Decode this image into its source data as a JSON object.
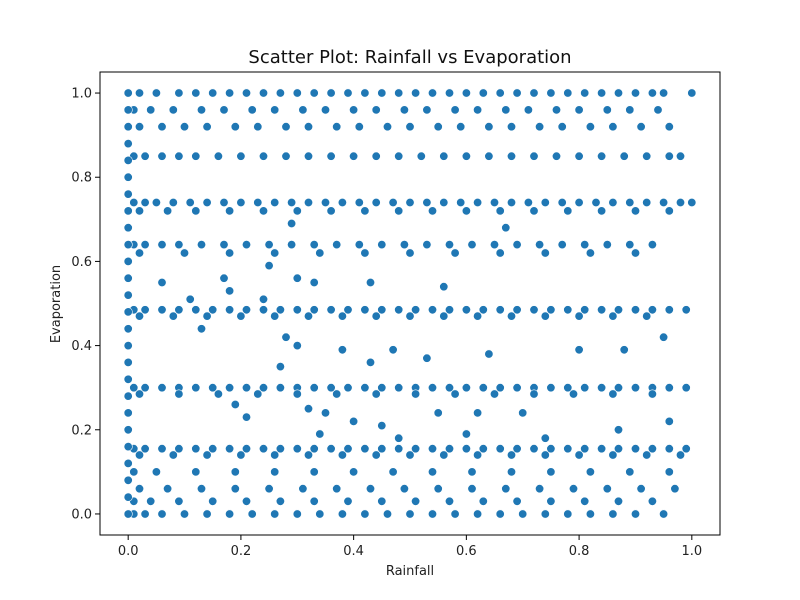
{
  "chart_data": {
    "type": "scatter",
    "title": "Scatter Plot: Rainfall vs Evaporation",
    "xlabel": "Rainfall",
    "ylabel": "Evaporation",
    "xlim": [
      -0.05,
      1.05
    ],
    "ylim": [
      -0.05,
      1.05
    ],
    "x_ticks": [
      0.0,
      0.2,
      0.4,
      0.6,
      0.8,
      1.0
    ],
    "y_ticks": [
      0.0,
      0.2,
      0.4,
      0.6,
      0.8,
      1.0
    ],
    "x_tick_labels": [
      "0.0",
      "0.2",
      "0.4",
      "0.6",
      "0.8",
      "1.0"
    ],
    "y_tick_labels": [
      "0.0",
      "0.2",
      "0.4",
      "0.6",
      "0.8",
      "1.0"
    ],
    "grid": false,
    "colors": {
      "marker": "#1f77b4",
      "marker_edge": "#ffffff"
    },
    "bands": [
      {
        "y": 1.0,
        "x": [
          0.02,
          0.05,
          0.09,
          0.12,
          0.15,
          0.18,
          0.21,
          0.24,
          0.27,
          0.3,
          0.33,
          0.36,
          0.39,
          0.42,
          0.45,
          0.48,
          0.51,
          0.54,
          0.57,
          0.6,
          0.63,
          0.66,
          0.69,
          0.72,
          0.75,
          0.78,
          0.81,
          0.84,
          0.87,
          0.9,
          0.93,
          0.95,
          1.0
        ]
      },
      {
        "y": 0.96,
        "x": [
          0.01,
          0.04,
          0.08,
          0.13,
          0.17,
          0.22,
          0.26,
          0.31,
          0.35,
          0.4,
          0.44,
          0.49,
          0.53,
          0.58,
          0.62,
          0.67,
          0.71,
          0.76,
          0.8,
          0.85,
          0.89,
          0.94
        ]
      },
      {
        "y": 0.92,
        "x": [
          0.02,
          0.06,
          0.1,
          0.14,
          0.19,
          0.23,
          0.28,
          0.32,
          0.37,
          0.41,
          0.46,
          0.5,
          0.55,
          0.59,
          0.64,
          0.68,
          0.73,
          0.77,
          0.82,
          0.86,
          0.91,
          0.96
        ]
      },
      {
        "y": 0.85,
        "x": [
          0.01,
          0.03,
          0.06,
          0.09,
          0.12,
          0.16,
          0.2,
          0.24,
          0.28,
          0.32,
          0.36,
          0.4,
          0.44,
          0.48,
          0.52,
          0.56,
          0.6,
          0.64,
          0.68,
          0.72,
          0.76,
          0.8,
          0.84,
          0.88,
          0.92,
          0.96,
          0.98
        ]
      },
      {
        "y": 0.74,
        "x": [
          0.01,
          0.03,
          0.05,
          0.08,
          0.11,
          0.14,
          0.17,
          0.2,
          0.23,
          0.26,
          0.29,
          0.32,
          0.35,
          0.38,
          0.41,
          0.44,
          0.47,
          0.5,
          0.53,
          0.56,
          0.59,
          0.62,
          0.65,
          0.68,
          0.71,
          0.74,
          0.77,
          0.8,
          0.83,
          0.86,
          0.89,
          0.92,
          0.95,
          0.98,
          1.0
        ]
      },
      {
        "y": 0.72,
        "x": [
          0.02,
          0.07,
          0.12,
          0.18,
          0.24,
          0.3,
          0.36,
          0.42,
          0.48,
          0.54,
          0.6,
          0.66,
          0.72,
          0.78,
          0.84,
          0.9,
          0.96
        ]
      },
      {
        "y": 0.64,
        "x": [
          0.01,
          0.03,
          0.06,
          0.09,
          0.13,
          0.17,
          0.21,
          0.25,
          0.29,
          0.33,
          0.37,
          0.41,
          0.45,
          0.49,
          0.53,
          0.57,
          0.61,
          0.65,
          0.69,
          0.73,
          0.77,
          0.81,
          0.85,
          0.89,
          0.93
        ]
      },
      {
        "y": 0.62,
        "x": [
          0.02,
          0.1,
          0.18,
          0.26,
          0.34,
          0.42,
          0.5,
          0.58,
          0.66,
          0.74,
          0.82,
          0.9
        ]
      },
      {
        "y": 0.485,
        "x": [
          0.01,
          0.03,
          0.06,
          0.09,
          0.12,
          0.15,
          0.18,
          0.21,
          0.24,
          0.27,
          0.3,
          0.33,
          0.36,
          0.39,
          0.42,
          0.45,
          0.48,
          0.51,
          0.54,
          0.57,
          0.6,
          0.63,
          0.66,
          0.69,
          0.72,
          0.75,
          0.78,
          0.81,
          0.84,
          0.87,
          0.9,
          0.93,
          0.96,
          0.99
        ]
      },
      {
        "y": 0.47,
        "x": [
          0.02,
          0.08,
          0.14,
          0.2,
          0.26,
          0.32,
          0.38,
          0.44,
          0.5,
          0.56,
          0.62,
          0.68,
          0.74,
          0.8,
          0.86,
          0.92
        ]
      },
      {
        "y": 0.3,
        "x": [
          0.01,
          0.03,
          0.06,
          0.09,
          0.12,
          0.15,
          0.18,
          0.21,
          0.24,
          0.27,
          0.3,
          0.33,
          0.36,
          0.39,
          0.42,
          0.45,
          0.48,
          0.51,
          0.54,
          0.57,
          0.6,
          0.63,
          0.66,
          0.69,
          0.72,
          0.75,
          0.78,
          0.81,
          0.84,
          0.87,
          0.9,
          0.93,
          0.96,
          0.99
        ]
      },
      {
        "y": 0.285,
        "x": [
          0.02,
          0.09,
          0.16,
          0.23,
          0.3,
          0.37,
          0.44,
          0.51,
          0.58,
          0.65,
          0.72,
          0.79,
          0.86,
          0.93
        ]
      },
      {
        "y": 0.155,
        "x": [
          0.01,
          0.03,
          0.06,
          0.09,
          0.12,
          0.15,
          0.18,
          0.21,
          0.24,
          0.27,
          0.3,
          0.33,
          0.36,
          0.39,
          0.42,
          0.45,
          0.48,
          0.51,
          0.54,
          0.57,
          0.6,
          0.63,
          0.66,
          0.69,
          0.72,
          0.75,
          0.78,
          0.81,
          0.84,
          0.87,
          0.9,
          0.93,
          0.96,
          0.99
        ]
      },
      {
        "y": 0.14,
        "x": [
          0.02,
          0.08,
          0.14,
          0.2,
          0.26,
          0.32,
          0.38,
          0.44,
          0.5,
          0.56,
          0.62,
          0.68,
          0.74,
          0.8,
          0.86,
          0.92,
          0.98
        ]
      },
      {
        "y": 0.1,
        "x": [
          0.01,
          0.05,
          0.12,
          0.19,
          0.26,
          0.33,
          0.4,
          0.47,
          0.54,
          0.61,
          0.68,
          0.75,
          0.82,
          0.89,
          0.96
        ]
      },
      {
        "y": 0.06,
        "x": [
          0.02,
          0.07,
          0.13,
          0.19,
          0.25,
          0.31,
          0.37,
          0.43,
          0.49,
          0.55,
          0.61,
          0.67,
          0.73,
          0.79,
          0.85,
          0.91,
          0.97
        ]
      },
      {
        "y": 0.03,
        "x": [
          0.01,
          0.04,
          0.09,
          0.15,
          0.21,
          0.27,
          0.33,
          0.39,
          0.45,
          0.51,
          0.57,
          0.63,
          0.69,
          0.75,
          0.81,
          0.87,
          0.93
        ]
      },
      {
        "y": 0.0,
        "x": [
          0.01,
          0.03,
          0.06,
          0.1,
          0.14,
          0.18,
          0.22,
          0.26,
          0.3,
          0.34,
          0.38,
          0.42,
          0.46,
          0.5,
          0.54,
          0.58,
          0.62,
          0.66,
          0.7,
          0.74,
          0.78,
          0.82,
          0.86,
          0.9,
          0.95
        ]
      }
    ],
    "column_x0": {
      "x": 0.0,
      "y": [
        0.0,
        0.04,
        0.08,
        0.12,
        0.16,
        0.2,
        0.24,
        0.28,
        0.32,
        0.36,
        0.4,
        0.44,
        0.48,
        0.52,
        0.56,
        0.6,
        0.64,
        0.68,
        0.72,
        0.76,
        0.8,
        0.84,
        0.88,
        0.92,
        0.96,
        1.0
      ]
    },
    "scattered": [
      {
        "x": 0.29,
        "y": 0.69
      },
      {
        "x": 0.67,
        "y": 0.68
      },
      {
        "x": 0.25,
        "y": 0.59
      },
      {
        "x": 0.43,
        "y": 0.55
      },
      {
        "x": 0.56,
        "y": 0.54
      },
      {
        "x": 0.17,
        "y": 0.56
      },
      {
        "x": 0.3,
        "y": 0.56
      },
      {
        "x": 0.33,
        "y": 0.55
      },
      {
        "x": 0.18,
        "y": 0.53
      },
      {
        "x": 0.24,
        "y": 0.51
      },
      {
        "x": 0.06,
        "y": 0.55
      },
      {
        "x": 0.11,
        "y": 0.51
      },
      {
        "x": 0.13,
        "y": 0.44
      },
      {
        "x": 0.28,
        "y": 0.42
      },
      {
        "x": 0.3,
        "y": 0.4
      },
      {
        "x": 0.38,
        "y": 0.39
      },
      {
        "x": 0.47,
        "y": 0.39
      },
      {
        "x": 0.53,
        "y": 0.37
      },
      {
        "x": 0.43,
        "y": 0.36
      },
      {
        "x": 0.27,
        "y": 0.35
      },
      {
        "x": 0.64,
        "y": 0.38
      },
      {
        "x": 0.8,
        "y": 0.39
      },
      {
        "x": 0.88,
        "y": 0.39
      },
      {
        "x": 0.95,
        "y": 0.42
      },
      {
        "x": 0.19,
        "y": 0.26
      },
      {
        "x": 0.21,
        "y": 0.23
      },
      {
        "x": 0.32,
        "y": 0.25
      },
      {
        "x": 0.35,
        "y": 0.24
      },
      {
        "x": 0.4,
        "y": 0.22
      },
      {
        "x": 0.45,
        "y": 0.21
      },
      {
        "x": 0.55,
        "y": 0.24
      },
      {
        "x": 0.62,
        "y": 0.24
      },
      {
        "x": 0.7,
        "y": 0.24
      },
      {
        "x": 0.87,
        "y": 0.2
      },
      {
        "x": 0.96,
        "y": 0.22
      },
      {
        "x": 0.34,
        "y": 0.19
      },
      {
        "x": 0.48,
        "y": 0.18
      },
      {
        "x": 0.6,
        "y": 0.19
      },
      {
        "x": 0.74,
        "y": 0.18
      }
    ]
  }
}
